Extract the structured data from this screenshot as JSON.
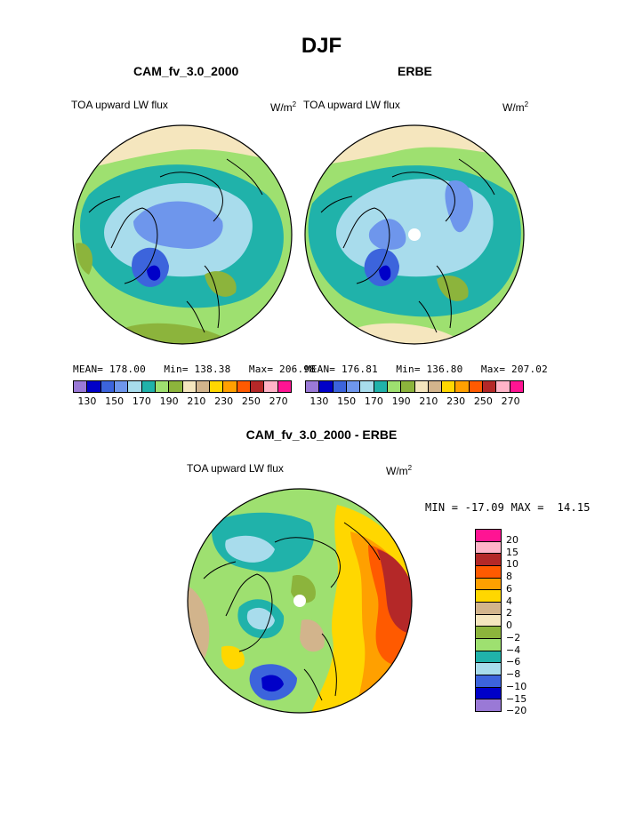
{
  "season": "DJF",
  "variable": "TOA upward LW flux",
  "units": "W/m",
  "units_sup": "2",
  "panels": [
    {
      "title": "CAM_fv_3.0_2000",
      "mean_label": "MEAN=",
      "mean": "178.00",
      "min_label": "Min=",
      "min": "138.38",
      "max_label": "Max=",
      "max": "206.98"
    },
    {
      "title": "ERBE",
      "mean_label": "MEAN=",
      "mean": "176.81",
      "min_label": "Min=",
      "min": "136.80",
      "max_label": "Max=",
      "max": "207.02"
    }
  ],
  "field_colorbar": {
    "colors": [
      "#9a79d6",
      "#0000c8",
      "#3c64dc",
      "#6e96ec",
      "#a8dcec",
      "#20b2aa",
      "#9ee070",
      "#8cb43c",
      "#f5e6be",
      "#d2b48c",
      "#ffd700",
      "#ffa000",
      "#ff5a00",
      "#b42828",
      "#ffb4c8",
      "#ff1493"
    ],
    "tick_labels": [
      "130",
      "150",
      "170",
      "190",
      "210",
      "230",
      "250",
      "270"
    ]
  },
  "diff": {
    "title": "CAM_fv_3.0_2000 - ERBE",
    "min_label": "MIN =",
    "min": "-17.09",
    "max_label": "MAX =",
    "max": "14.15",
    "colors": [
      "#ff1493",
      "#ffb4c8",
      "#b42828",
      "#ff5a00",
      "#ffa000",
      "#ffd700",
      "#d2b48c",
      "#f5e6be",
      "#8cb43c",
      "#9ee070",
      "#20b2aa",
      "#a8dcec",
      "#3c64dc",
      "#0000c8",
      "#9a79d6"
    ],
    "tick_labels": [
      "20",
      "15",
      "10",
      "8",
      "6",
      "4",
      "2",
      "0",
      "−2",
      "−4",
      "−6",
      "−8",
      "−10",
      "−15",
      "−20"
    ]
  }
}
